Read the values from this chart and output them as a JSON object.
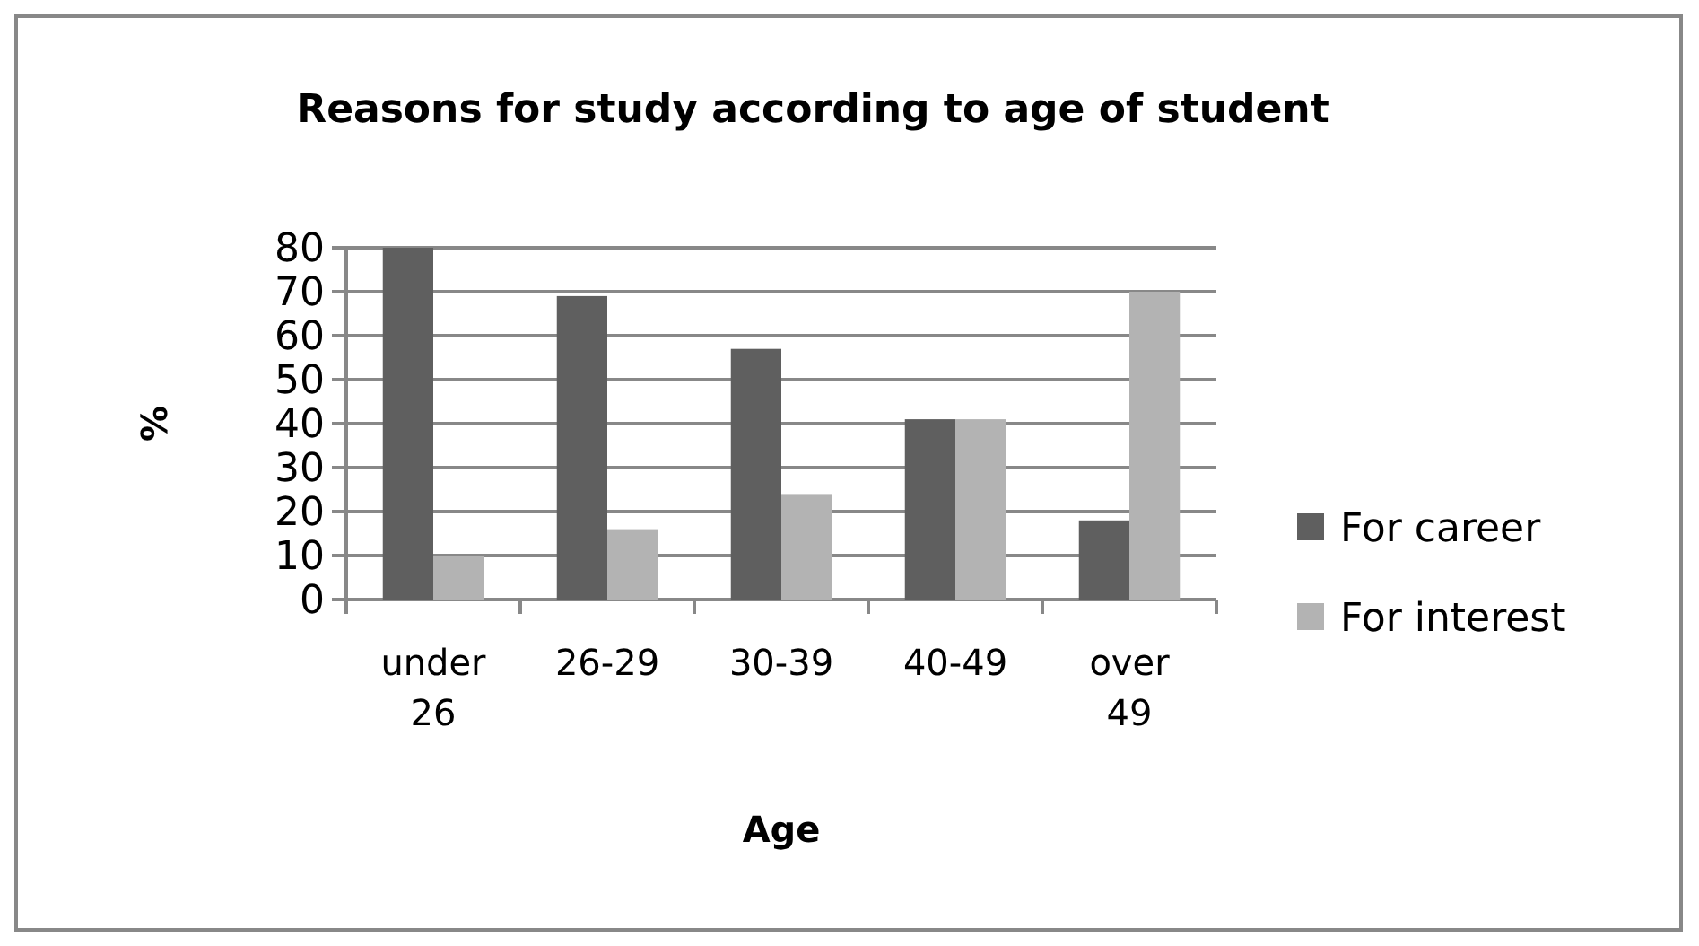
{
  "chart_data": {
    "type": "bar",
    "title": "Reasons for study according to age of student",
    "xlabel": "Age",
    "ylabel": "%",
    "categories": [
      "under 26",
      "26-29",
      "30-39",
      "40-49",
      "over 49"
    ],
    "series": [
      {
        "name": "For career",
        "color": "#5f5f5f",
        "values": [
          80,
          69,
          57,
          41,
          18
        ]
      },
      {
        "name": "For interest",
        "color": "#b3b3b3",
        "values": [
          10,
          16,
          24,
          41,
          70
        ]
      }
    ],
    "ylim": [
      0,
      80
    ],
    "yticks": [
      0,
      10,
      20,
      30,
      40,
      50,
      60,
      70,
      80
    ],
    "grid": "y",
    "legend": "right"
  }
}
